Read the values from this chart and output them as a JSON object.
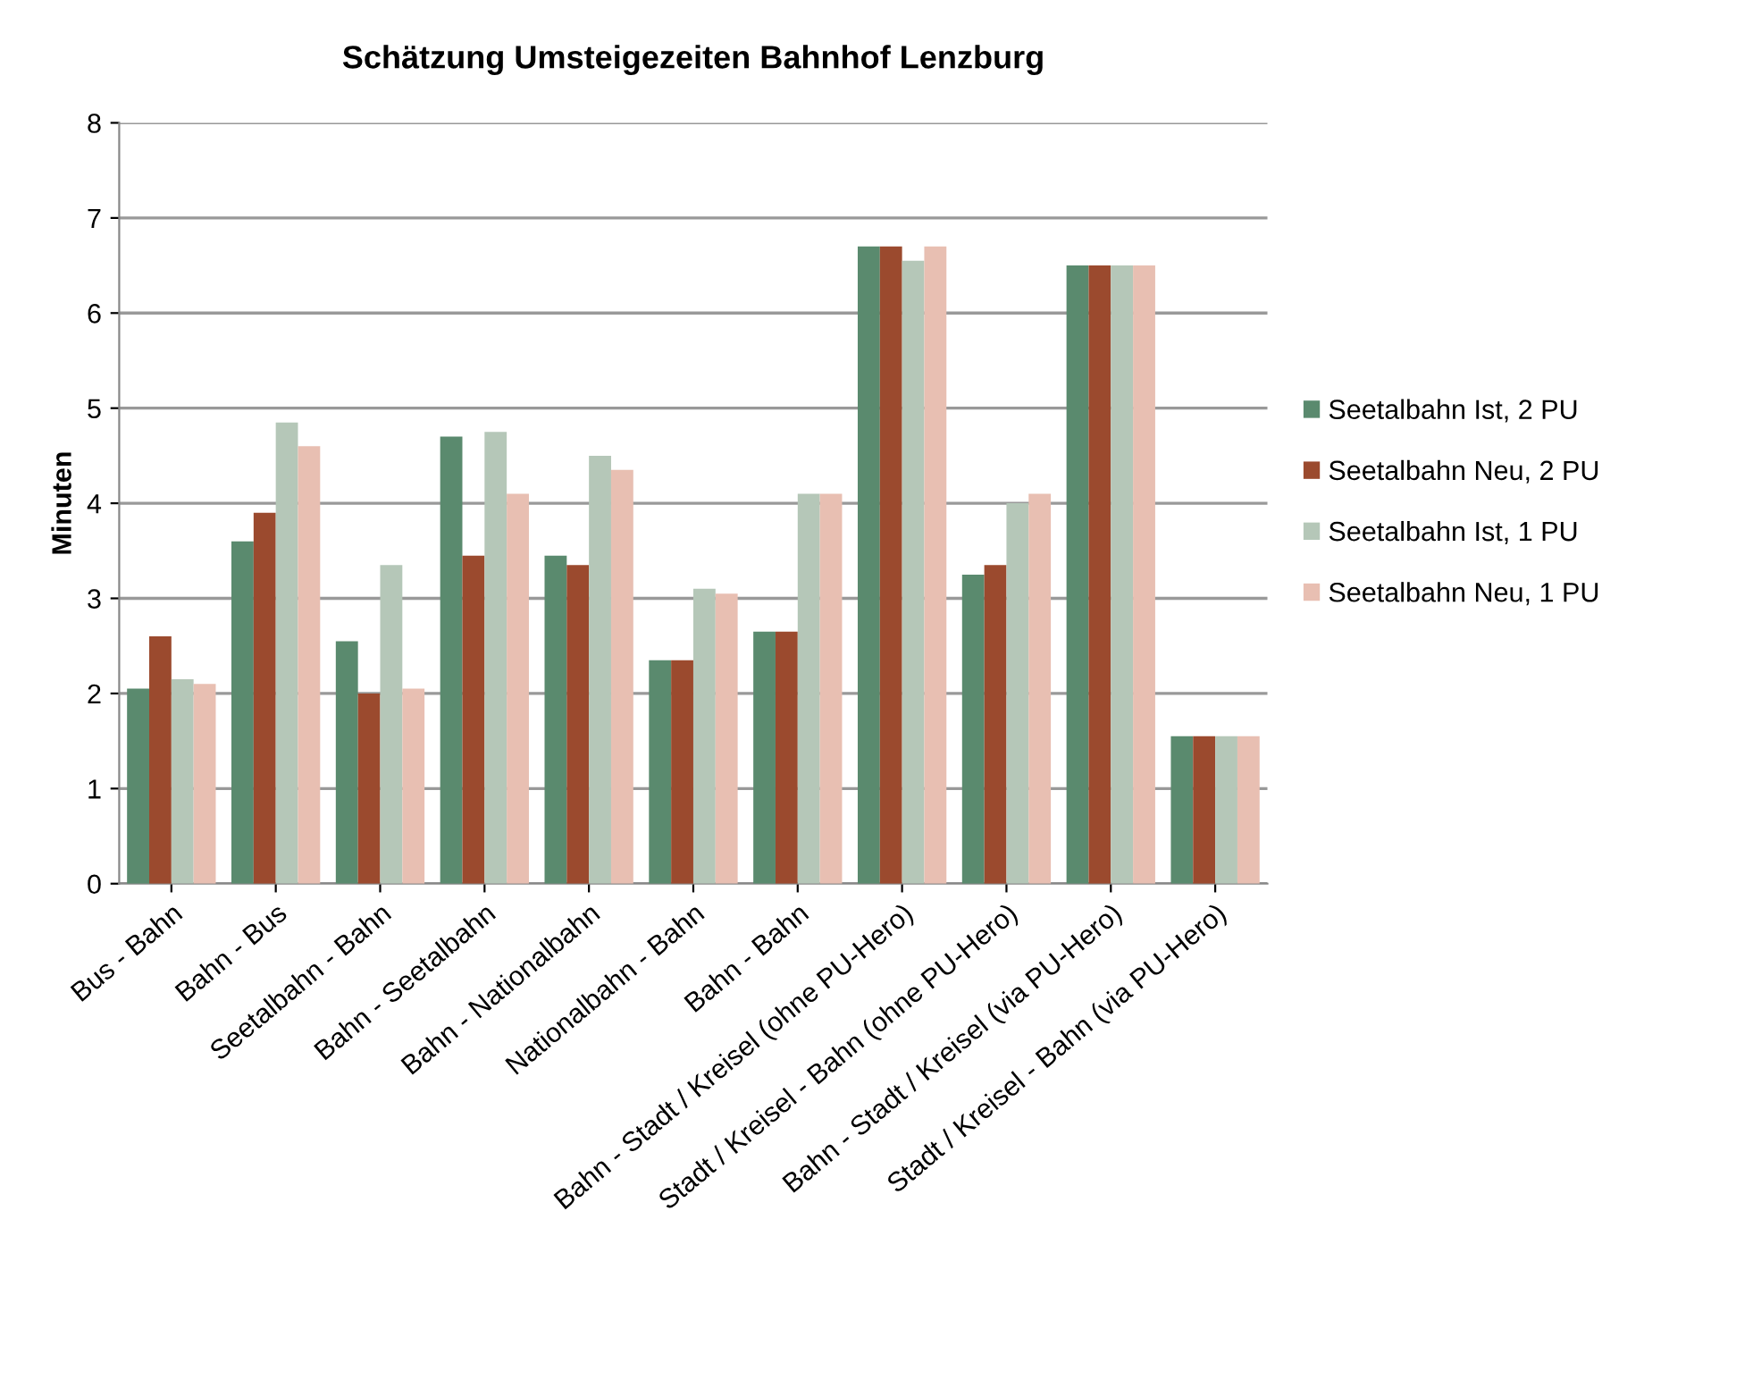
{
  "chart_data": {
    "type": "bar",
    "title": "Schätzung Umsteigezeiten Bahnhof Lenzburg",
    "ylabel": "Minuten",
    "categories": [
      "Bus - Bahn",
      "Bahn - Bus",
      "Seetalbahn - Bahn",
      "Bahn - Seetalbahn",
      "Bahn - Nationalbahn",
      "Nationalbahn - Bahn",
      "Bahn - Bahn",
      "Bahn - Stadt / Kreisel (ohne PU-Hero)",
      "Stadt / Kreisel - Bahn (ohne PU-Hero)",
      "Bahn - Stadt / Kreisel (via PU-Hero)",
      "Stadt / Kreisel - Bahn (via PU-Hero)"
    ],
    "series": [
      {
        "name": "Seetalbahn Ist, 2 PU",
        "color": "#5a8a6e",
        "values": [
          2.05,
          3.6,
          2.55,
          4.7,
          3.45,
          2.35,
          2.65,
          6.7,
          3.25,
          6.5,
          1.55
        ]
      },
      {
        "name": "Seetalbahn Neu, 2 PU",
        "color": "#9b4a2e",
        "values": [
          2.6,
          3.9,
          2.0,
          3.45,
          3.35,
          2.35,
          2.65,
          6.7,
          3.35,
          6.5,
          1.55
        ]
      },
      {
        "name": "Seetalbahn Ist, 1 PU",
        "color": "#b5c7b8",
        "values": [
          2.15,
          4.85,
          3.35,
          4.75,
          4.5,
          3.1,
          4.1,
          6.55,
          4.0,
          6.5,
          1.55
        ]
      },
      {
        "name": "Seetalbahn Neu, 1 PU",
        "color": "#e8bfb2",
        "values": [
          2.1,
          4.6,
          2.05,
          4.1,
          4.35,
          3.05,
          4.1,
          6.7,
          4.1,
          6.5,
          1.55
        ]
      }
    ],
    "ylim": [
      0,
      8
    ],
    "yticks": [
      0,
      1,
      2,
      3,
      4,
      5,
      6,
      7,
      8
    ],
    "grid": "y",
    "legend": "right"
  }
}
